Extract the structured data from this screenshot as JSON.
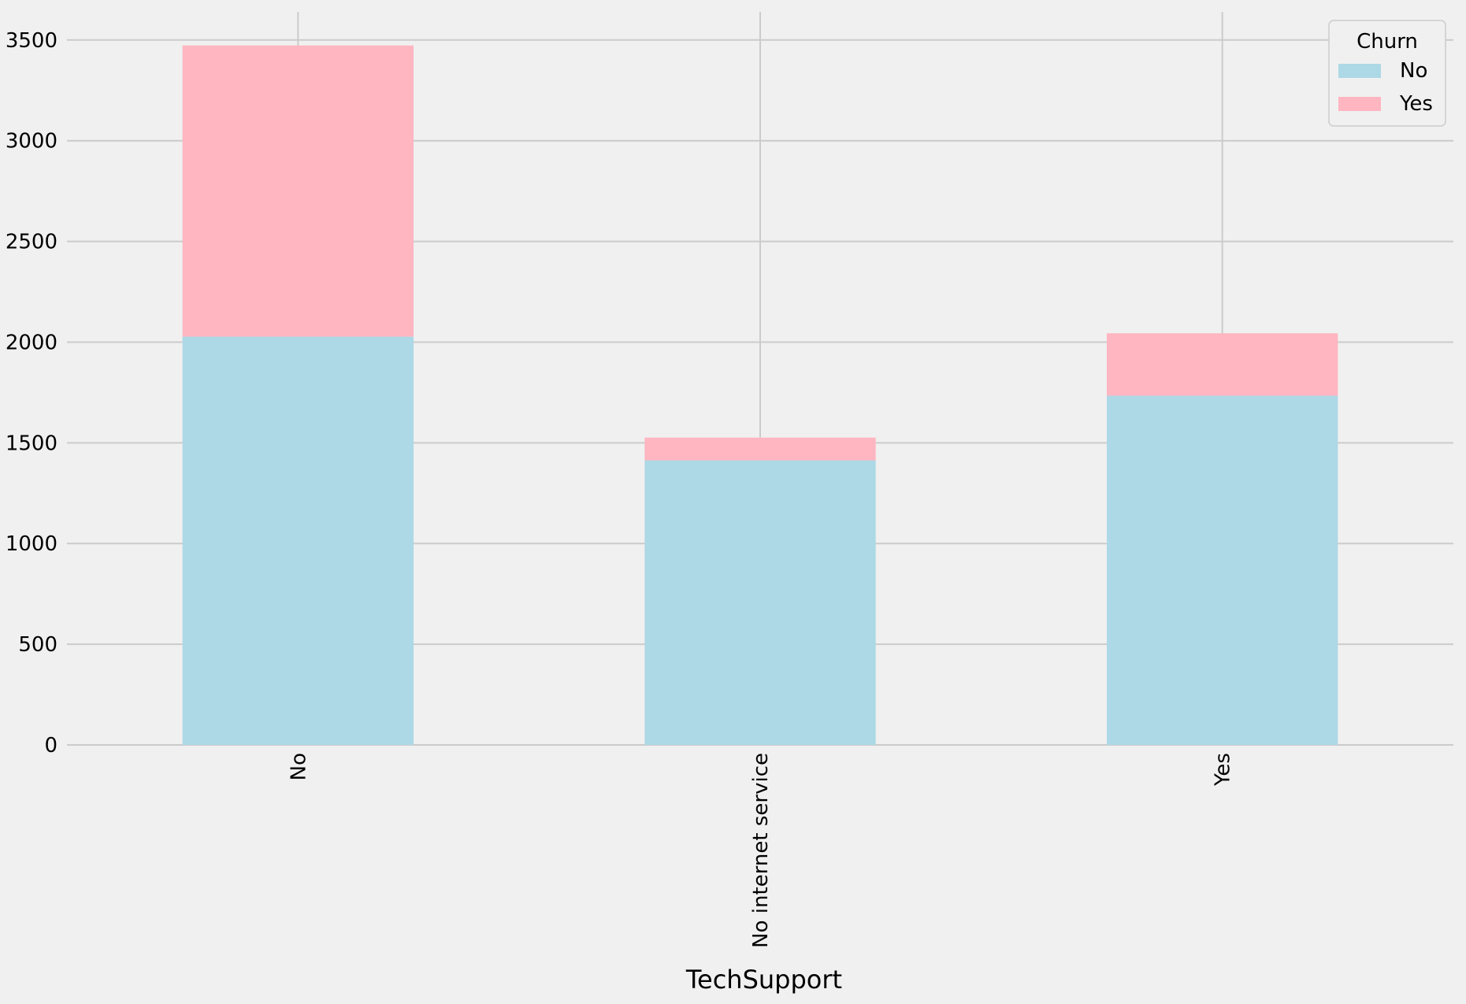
{
  "chart_data": {
    "type": "bar",
    "stacked": true,
    "title": "",
    "xlabel": "TechSupport",
    "ylabel": "",
    "categories": [
      "No",
      "No internet service",
      "Yes"
    ],
    "series": [
      {
        "name": "No",
        "values": [
          2027,
          1413,
          1734
        ],
        "color": "#add8e6"
      },
      {
        "name": "Yes",
        "values": [
          1446,
          113,
          310
        ],
        "color": "#ffb6c1"
      }
    ],
    "ylim": [
      0,
      3640
    ],
    "yticks": [
      0,
      500,
      1000,
      1500,
      2000,
      2500,
      3000,
      3500
    ],
    "grid": true,
    "legend": {
      "title": "Churn",
      "placement": "top-right"
    },
    "background_color": "#f0f0f0",
    "gridline_color": "#cbcbcb"
  }
}
